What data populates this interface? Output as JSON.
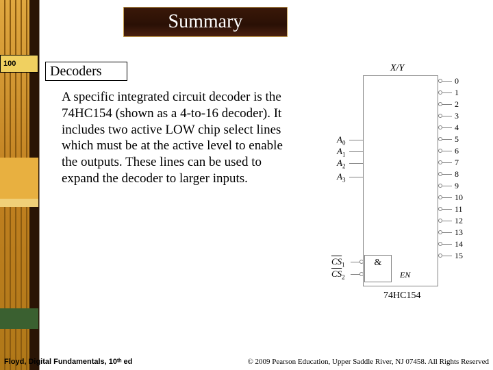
{
  "title": "Summary",
  "subtitle": "Decoders",
  "body": "A specific integrated circuit decoder is the 74HC154 (shown as a 4-to-16 decoder). It includes two active LOW chip select lines which must be at the active level to enable the outputs. These lines can be used to expand the decoder to larger inputs.",
  "chip": {
    "top_label": "X/Y",
    "inputs": [
      "A",
      "A",
      "A",
      "A"
    ],
    "input_subs": [
      "0",
      "1",
      "2",
      "3"
    ],
    "cs": [
      "CS",
      "CS"
    ],
    "cs_subs": [
      "1",
      "2"
    ],
    "and_sym": "&",
    "enable": "EN",
    "outputs": [
      "0",
      "1",
      "2",
      "3",
      "4",
      "5",
      "6",
      "7",
      "8",
      "9",
      "10",
      "11",
      "12",
      "13",
      "14",
      "15"
    ],
    "part": "74HC154"
  },
  "side": {
    "accent1": "100"
  },
  "footer": {
    "left": "Floyd, Digital Fundamentals, 10ᵗʰ ed",
    "right": "© 2009 Pearson Education, Upper Saddle River, NJ 07458. All Rights Reserved"
  },
  "colors": {
    "gold": "#d4a040",
    "dark": "#2a1505"
  }
}
